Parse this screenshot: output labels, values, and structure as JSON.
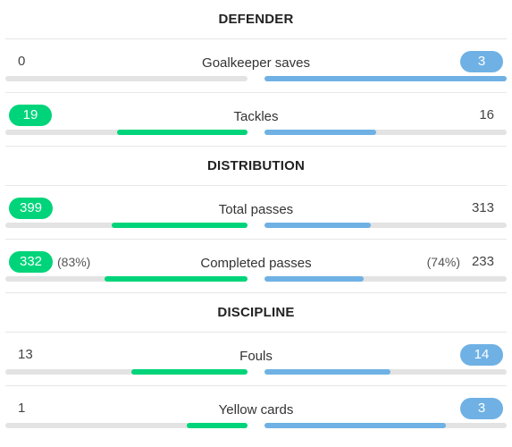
{
  "sections": {
    "defender": "DEFENDER",
    "distribution": "DISTRIBUTION",
    "discipline": "DISCIPLINE"
  },
  "colors": {
    "home": "#00d47a",
    "away": "#6fb1e4",
    "track": "#e3e3e3"
  },
  "stats": {
    "goalkeeper_saves": {
      "label": "Goalkeeper saves",
      "home": "0",
      "away": "3",
      "home_fill": 0,
      "away_fill": 1.0
    },
    "tackles": {
      "label": "Tackles",
      "home": "19",
      "away": "16",
      "home_fill": 0.54,
      "away_fill": 0.46
    },
    "total_passes": {
      "label": "Total passes",
      "home": "399",
      "away": "313",
      "home_fill": 0.56,
      "away_fill": 0.44
    },
    "completed_passes": {
      "label": "Completed passes",
      "home": "332",
      "away": "233",
      "home_pct": "(83%)",
      "away_pct": "(74%)",
      "home_fill": 0.59,
      "away_fill": 0.41
    },
    "fouls": {
      "label": "Fouls",
      "home": "13",
      "away": "14",
      "home_fill": 0.48,
      "away_fill": 0.52
    },
    "yellow_cards": {
      "label": "Yellow cards",
      "home": "1",
      "away": "3",
      "home_fill": 0.25,
      "away_fill": 0.75
    }
  }
}
